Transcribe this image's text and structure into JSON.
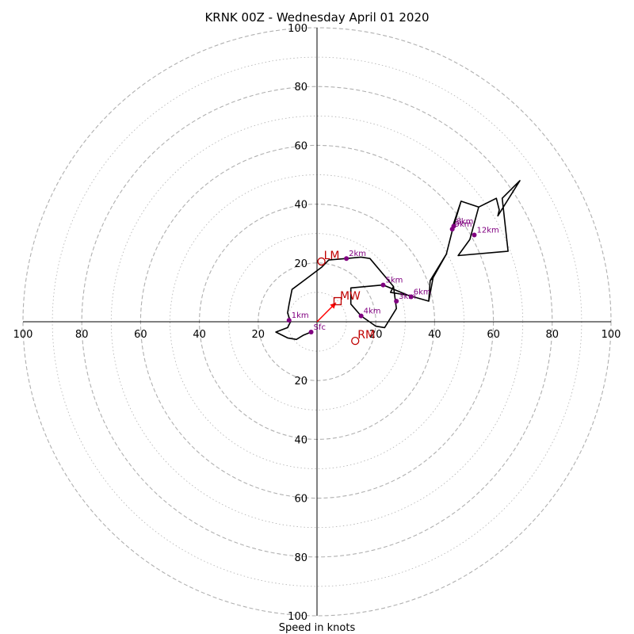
{
  "chart_data": {
    "type": "hodograph",
    "title": "KRNK 00Z - Wednesday April 01 2020",
    "xlabel": "Speed in knots",
    "range": [
      -100,
      100
    ],
    "ring_major_step": 20,
    "ring_minor_step": 10,
    "tick_labels": {
      "top": [
        "100",
        "80",
        "60",
        "40",
        "20"
      ],
      "bottom": [
        "20",
        "40",
        "60",
        "80",
        "100"
      ],
      "left": [
        "100",
        "80",
        "60",
        "40",
        "20"
      ],
      "right": [
        "20",
        "40",
        "60",
        "80",
        "100"
      ]
    },
    "tick_values": [
      20,
      40,
      60,
      80,
      100
    ],
    "profile_points": [
      [
        -2,
        -3.5
      ],
      [
        -4.5,
        -4.5
      ],
      [
        -7,
        -6
      ],
      [
        -10,
        -5.5
      ],
      [
        -14,
        -3.5
      ],
      [
        -10,
        -2
      ],
      [
        -9,
        0
      ],
      [
        -10,
        3
      ],
      [
        -9.5,
        6
      ],
      [
        -8.5,
        11
      ],
      [
        1.5,
        18.5
      ],
      [
        4,
        21
      ],
      [
        10,
        21.5
      ],
      [
        15,
        22
      ],
      [
        18,
        21.5
      ],
      [
        26,
        12
      ],
      [
        25,
        10
      ],
      [
        31,
        9
      ],
      [
        38,
        7
      ],
      [
        38.5,
        14
      ],
      [
        39.5,
        15
      ],
      [
        44,
        23
      ],
      [
        46,
        31
      ],
      [
        49,
        41
      ],
      [
        55,
        39
      ],
      [
        61,
        42
      ],
      [
        62,
        38
      ],
      [
        61.5,
        36
      ],
      [
        69,
        48
      ],
      [
        63,
        42
      ],
      [
        65,
        24
      ],
      [
        48,
        22.5
      ],
      [
        52,
        28
      ],
      [
        55,
        39
      ],
      [
        49,
        41
      ],
      [
        46,
        32
      ],
      [
        47,
        33
      ],
      [
        46,
        31
      ],
      [
        44,
        23
      ],
      [
        38.5,
        14
      ],
      [
        39.5,
        15
      ],
      [
        38,
        7
      ],
      [
        31,
        9
      ],
      [
        22.5,
        12.5
      ],
      [
        11.5,
        11.5
      ],
      [
        11.5,
        6
      ],
      [
        15,
        2
      ],
      [
        20,
        -1.5
      ],
      [
        23,
        -2
      ],
      [
        27,
        4.5
      ],
      [
        26,
        12
      ]
    ],
    "height_labels": [
      {
        "label": "Sfc",
        "u": -2,
        "v": -3.5
      },
      {
        "label": "1km",
        "u": -9.5,
        "v": 0.5
      },
      {
        "label": "2km",
        "u": 10,
        "v": 21.5
      },
      {
        "label": "3km",
        "u": 27,
        "v": 7
      },
      {
        "label": "4km",
        "u": 15,
        "v": 2
      },
      {
        "label": "5km",
        "u": 22.5,
        "v": 12.5
      },
      {
        "label": "6km",
        "u": 32,
        "v": 8.5
      },
      {
        "label": "8km",
        "u": 46.5,
        "v": 32.5
      },
      {
        "label": "9km",
        "u": 46,
        "v": 31.5
      },
      {
        "label": "12km",
        "u": 53.5,
        "v": 29.5
      }
    ],
    "storm_motion": {
      "LM": {
        "label": "LM",
        "u": 1.5,
        "v": 20.5
      },
      "MW": {
        "label": "MW",
        "u": 7,
        "v": 7
      },
      "RM": {
        "label": "RM",
        "u": 13,
        "v": -6.5
      }
    },
    "colors": {
      "profile": "#000000",
      "height_marker": "#800080",
      "storm_motion": "#c00000",
      "mean_wind_arrow": "#ff0000",
      "ring": "#b0b0b0"
    },
    "grid": true
  }
}
